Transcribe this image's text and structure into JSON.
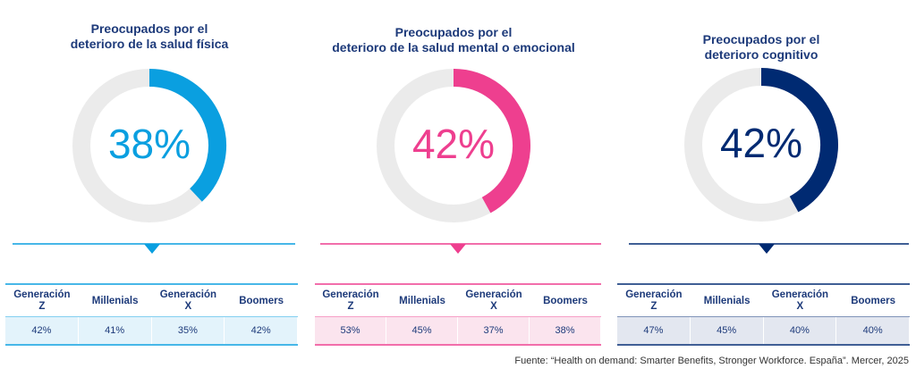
{
  "chart_data": [
    {
      "type": "donut",
      "title": "Preocupados por el\ndeterioro de la salud física",
      "values": [
        38
      ],
      "value_labels": [
        "38%"
      ],
      "color": "#0a9fe0",
      "track_color": "#ebebeb",
      "table": {
        "columns": [
          "Generación\nZ",
          "Millenials",
          "Generación\nX",
          "Boomers"
        ],
        "rows": [
          [
            "42%",
            "41%",
            "35%",
            "42%"
          ]
        ],
        "fill": "#e3f3fb"
      }
    },
    {
      "type": "donut",
      "title": "Preocupados por el\ndeterioro de la salud mental o emocional",
      "values": [
        42
      ],
      "value_labels": [
        "42%"
      ],
      "color": "#ee3f8f",
      "track_color": "#ebebeb",
      "table": {
        "columns": [
          "Generación\nZ",
          "Millenials",
          "Generación\nX",
          "Boomers"
        ],
        "rows": [
          [
            "53%",
            "45%",
            "37%",
            "38%"
          ]
        ],
        "fill": "#fbe4ee"
      }
    },
    {
      "type": "donut",
      "title": "Preocupados por el\ndeterioro cognitivo",
      "values": [
        42
      ],
      "value_labels": [
        "42%"
      ],
      "color": "#002a72",
      "track_color": "#ebebeb",
      "table": {
        "columns": [
          "Generación\nZ",
          "Millenials",
          "Generación\nX",
          "Boomers"
        ],
        "rows": [
          [
            "47%",
            "45%",
            "40%",
            "40%"
          ]
        ],
        "fill": "#e3e7f0"
      }
    }
  ],
  "source": "Fuente: “Health on demand: Smarter Benefits, Stronger Workforce. España”. Mercer, 2025"
}
